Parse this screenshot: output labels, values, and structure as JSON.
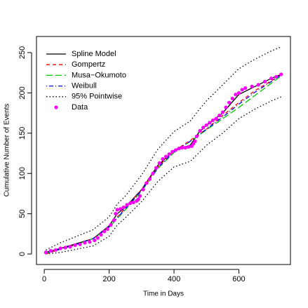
{
  "chart_data": {
    "type": "line",
    "xlabel": "Time in Days",
    "ylabel": "Cumulative Number of Events",
    "x": [
      5,
      50,
      100,
      150,
      200,
      225,
      250,
      300,
      350,
      400,
      450,
      475,
      500,
      550,
      600,
      650,
      700,
      730
    ],
    "series": [
      {
        "name": "Spline Model",
        "color": "#000000",
        "linestyle": "solid",
        "values": [
          2,
          7,
          13,
          19,
          35,
          50,
          58,
          80,
          110,
          128,
          135,
          150,
          160,
          175,
          198,
          208,
          218,
          223
        ]
      },
      {
        "name": "Gompertz",
        "color": "#ff0000",
        "linestyle": "dashed",
        "values": [
          0,
          6,
          12,
          19,
          34,
          46,
          57,
          80,
          108,
          128,
          141,
          148,
          155,
          172,
          188,
          203,
          215,
          222
        ]
      },
      {
        "name": "Musa−Okumoto",
        "color": "#00cd00",
        "linestyle": "longdash",
        "values": [
          1,
          6,
          12,
          19,
          33,
          44,
          55,
          78,
          106,
          126,
          140,
          147,
          154,
          168,
          182,
          197,
          212,
          221
        ]
      },
      {
        "name": "Weibull",
        "color": "#0000ff",
        "linestyle": "dotdash",
        "values": [
          1,
          6,
          12,
          19,
          34,
          45,
          56,
          79,
          107,
          127,
          140,
          147,
          155,
          170,
          186,
          201,
          214,
          222
        ]
      },
      {
        "name": "95% Pointwise",
        "color": "#000000",
        "linestyle": "dotted",
        "upper": [
          5,
          14,
          22,
          30,
          46,
          62,
          72,
          98,
          130,
          152,
          165,
          178,
          190,
          210,
          230,
          242,
          252,
          257
        ],
        "lower": [
          0,
          2,
          6,
          10,
          22,
          36,
          45,
          65,
          90,
          108,
          115,
          125,
          135,
          150,
          168,
          180,
          190,
          195
        ]
      }
    ],
    "points": {
      "name": "Data",
      "color": "#ff00ff",
      "x": [
        5,
        20,
        35,
        50,
        65,
        80,
        95,
        110,
        125,
        140,
        155,
        165,
        175,
        185,
        195,
        205,
        215,
        220,
        225,
        235,
        245,
        255,
        265,
        275,
        285,
        290,
        295,
        305,
        315,
        325,
        335,
        345,
        355,
        365,
        375,
        385,
        395,
        405,
        415,
        425,
        435,
        445,
        455,
        460,
        465,
        470,
        480,
        490,
        500,
        510,
        520,
        530,
        540,
        550,
        560,
        570,
        580,
        590,
        600,
        610,
        620,
        640,
        660,
        680,
        700,
        715,
        730
      ],
      "values": [
        2,
        4,
        5,
        7,
        8,
        9,
        11,
        12,
        14,
        15,
        17,
        20,
        24,
        28,
        31,
        36,
        42,
        50,
        55,
        56,
        58,
        61,
        63,
        64,
        66,
        68,
        72,
        80,
        88,
        93,
        100,
        107,
        113,
        118,
        121,
        124,
        127,
        129,
        131,
        132,
        132,
        133,
        134,
        137,
        140,
        146,
        153,
        157,
        160,
        163,
        166,
        168,
        172,
        176,
        182,
        188,
        193,
        198,
        200,
        204,
        206,
        208,
        210,
        214,
        218,
        220,
        223
      ]
    },
    "xlim": [
      -24,
      759
    ],
    "ylim": [
      -13,
      270
    ],
    "xticks": [
      0,
      200,
      400,
      600
    ],
    "yticks": [
      0,
      50,
      100,
      150,
      200,
      250
    ],
    "legend": "topleft"
  }
}
